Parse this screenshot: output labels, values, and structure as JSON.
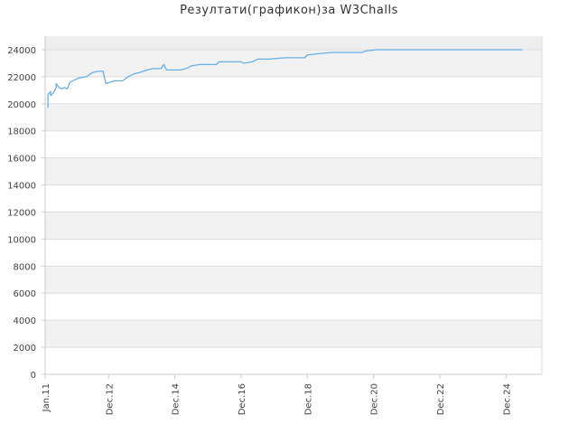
{
  "chart_data": {
    "type": "line",
    "title": "Резултати(графикон)за W3Challs",
    "xlabel": "",
    "ylabel": "",
    "ylim": [
      0,
      25000
    ],
    "yticks": [
      0,
      2000,
      4000,
      6000,
      8000,
      10000,
      12000,
      14000,
      16000,
      18000,
      20000,
      22000,
      24000
    ],
    "xlim": [
      "2011-01",
      "2026-01"
    ],
    "xticks": [
      {
        "label": "Jan.11",
        "date": "2011-01"
      },
      {
        "label": "Dec.12",
        "date": "2012-12"
      },
      {
        "label": "Dec.14",
        "date": "2014-12"
      },
      {
        "label": "Dec.16",
        "date": "2016-12"
      },
      {
        "label": "Dec.18",
        "date": "2018-12"
      },
      {
        "label": "Dec.20",
        "date": "2020-12"
      },
      {
        "label": "Dec.22",
        "date": "2022-12"
      },
      {
        "label": "Dec.24",
        "date": "2024-12"
      }
    ],
    "grid": true,
    "colors": {
      "line": "#6aaee6",
      "band": "#f2f2f2",
      "grid": "#dddddd",
      "axis": "#cccccc",
      "text": "#444444"
    },
    "series": [
      {
        "points": [
          [
            "2011-02",
            19700
          ],
          [
            "2011-02",
            20700
          ],
          [
            "2011-03",
            20900
          ],
          [
            "2011-03",
            20600
          ],
          [
            "2011-04",
            20800
          ],
          [
            "2011-05",
            21200
          ],
          [
            "2011-05",
            21500
          ],
          [
            "2011-06",
            21200
          ],
          [
            "2011-07",
            21100
          ],
          [
            "2011-08",
            21200
          ],
          [
            "2011-09",
            21100
          ],
          [
            "2011-10",
            21600
          ],
          [
            "2011-11",
            21700
          ],
          [
            "2012-01",
            21900
          ],
          [
            "2012-04",
            22000
          ],
          [
            "2012-06",
            22300
          ],
          [
            "2012-08",
            22400
          ],
          [
            "2012-10",
            22400
          ],
          [
            "2012-11",
            21500
          ],
          [
            "2013-02",
            21700
          ],
          [
            "2013-05",
            21700
          ],
          [
            "2013-07",
            22000
          ],
          [
            "2013-09",
            22200
          ],
          [
            "2013-11",
            22300
          ],
          [
            "2014-02",
            22500
          ],
          [
            "2014-04",
            22600
          ],
          [
            "2014-07",
            22600
          ],
          [
            "2014-08",
            22900
          ],
          [
            "2014-09",
            22500
          ],
          [
            "2015-02",
            22500
          ],
          [
            "2015-04",
            22600
          ],
          [
            "2015-06",
            22800
          ],
          [
            "2015-09",
            22900
          ],
          [
            "2016-03",
            22900
          ],
          [
            "2016-04",
            23100
          ],
          [
            "2016-12",
            23100
          ],
          [
            "2017-01",
            23000
          ],
          [
            "2017-04",
            23100
          ],
          [
            "2017-06",
            23300
          ],
          [
            "2017-10",
            23300
          ],
          [
            "2018-04",
            23400
          ],
          [
            "2018-11",
            23400
          ],
          [
            "2018-12",
            23600
          ],
          [
            "2019-04",
            23700
          ],
          [
            "2019-09",
            23800
          ],
          [
            "2020-08",
            23800
          ],
          [
            "2020-09",
            23900
          ],
          [
            "2021-01",
            24000
          ],
          [
            "2023-06",
            24000
          ],
          [
            "2025-06",
            24000
          ]
        ]
      }
    ]
  }
}
